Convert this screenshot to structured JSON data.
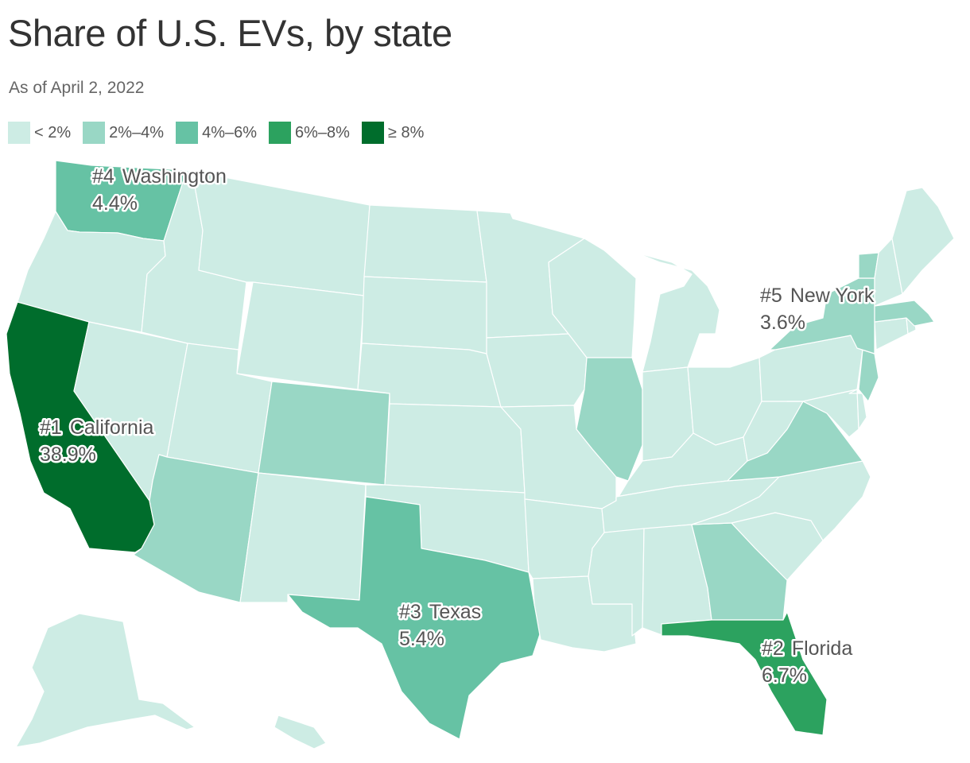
{
  "title": "Share of U.S. EVs, by state",
  "subtitle": "As of April 2, 2022",
  "legend": [
    {
      "label": "< 2%",
      "color": "#cdece4"
    },
    {
      "label": "2%–4%",
      "color": "#99d7c5"
    },
    {
      "label": "4%–6%",
      "color": "#66c2a4"
    },
    {
      "label": "6%–8%",
      "color": "#2ca25f"
    },
    {
      "label": "≥ 8%",
      "color": "#006d2c"
    }
  ],
  "highlights": [
    {
      "rank": "#1",
      "state": "California",
      "value": "38.9%"
    },
    {
      "rank": "#2",
      "state": "Florida",
      "value": "6.7%"
    },
    {
      "rank": "#3",
      "state": "Texas",
      "value": "5.4%"
    },
    {
      "rank": "#4",
      "state": "Washington",
      "value": "4.4%"
    },
    {
      "rank": "#5",
      "state": "New York",
      "value": "3.6%"
    }
  ],
  "state_bins": {
    "WA": 2,
    "OR": 0,
    "CA": 4,
    "NV": 0,
    "ID": 0,
    "MT": 0,
    "WY": 0,
    "UT": 0,
    "AZ": 1,
    "CO": 1,
    "NM": 0,
    "ND": 0,
    "SD": 0,
    "NE": 0,
    "KS": 0,
    "OK": 0,
    "TX": 2,
    "MN": 0,
    "IA": 0,
    "MO": 0,
    "AR": 0,
    "LA": 0,
    "WI": 0,
    "IL": 1,
    "MI": 0,
    "IN": 0,
    "OH": 0,
    "KY": 0,
    "TN": 0,
    "MS": 0,
    "AL": 0,
    "GA": 1,
    "FL": 3,
    "SC": 0,
    "NC": 0,
    "VA": 1,
    "WV": 0,
    "MD": 0,
    "DE": 0,
    "PA": 0,
    "NJ": 1,
    "NY": 1,
    "CT": 0,
    "RI": 0,
    "MA": 1,
    "VT": 1,
    "NH": 0,
    "ME": 0,
    "AK": 0,
    "HI": 0
  }
}
